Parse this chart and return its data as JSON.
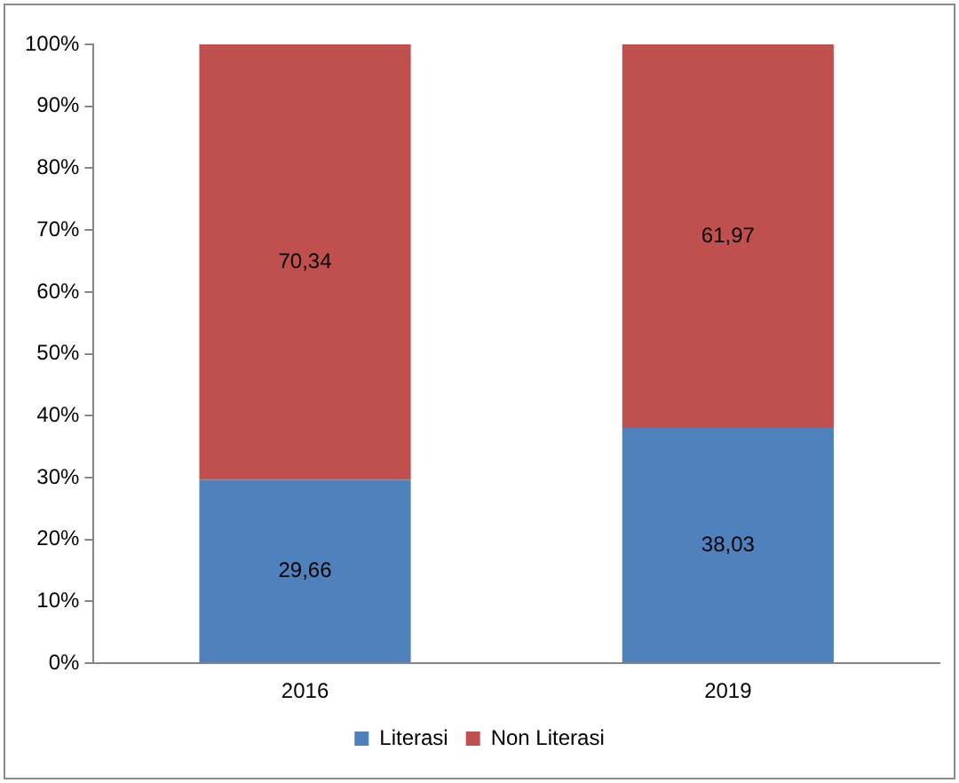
{
  "chart_data": {
    "type": "bar",
    "stacked": true,
    "categories": [
      "2016",
      "2019"
    ],
    "series": [
      {
        "name": "Literasi",
        "color": "#4f81bd",
        "values": [
          29.66,
          38.03
        ],
        "value_labels": [
          "29,66",
          "38,03"
        ]
      },
      {
        "name": "Non Literasi",
        "color": "#c0504d",
        "values": [
          70.34,
          61.97
        ],
        "value_labels": [
          "70,34",
          "61,97"
        ]
      }
    ],
    "ylim": [
      0,
      100
    ],
    "yticks": [
      {
        "value": 0,
        "label": "0%"
      },
      {
        "value": 10,
        "label": "10%"
      },
      {
        "value": 20,
        "label": "20%"
      },
      {
        "value": 30,
        "label": "30%"
      },
      {
        "value": 40,
        "label": "40%"
      },
      {
        "value": 50,
        "label": "50%"
      },
      {
        "value": 60,
        "label": "60%"
      },
      {
        "value": 70,
        "label": "70%"
      },
      {
        "value": 80,
        "label": "80%"
      },
      {
        "value": 90,
        "label": "90%"
      },
      {
        "value": 100,
        "label": "100%"
      }
    ],
    "grid": false,
    "legend": "bottom"
  }
}
